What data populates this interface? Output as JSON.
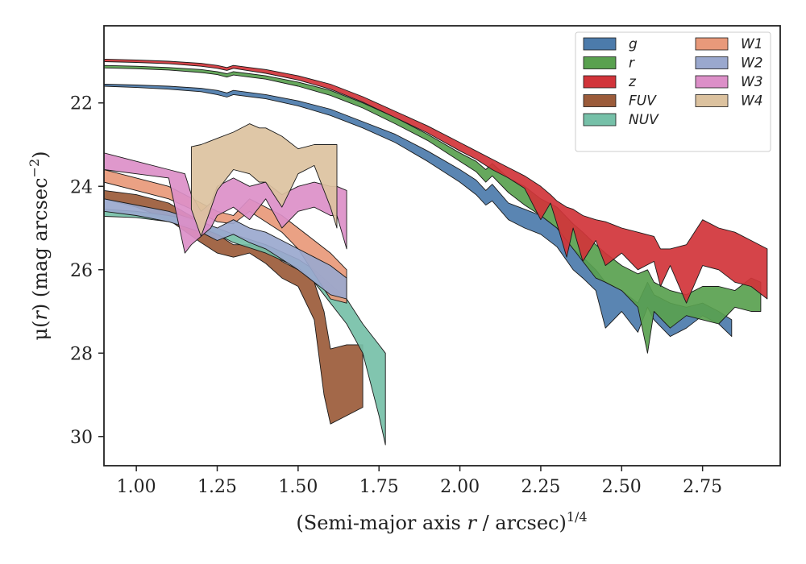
{
  "chart_data": {
    "type": "area",
    "xlabel_parts": [
      "(Semi-major axis ",
      "r",
      " / arcsec)",
      "1/4"
    ],
    "ylabel_parts": [
      "μ(",
      "r",
      ") (mag arcsec",
      "−2",
      ")"
    ],
    "xlim": [
      0.9,
      2.99
    ],
    "ylim": [
      30.7,
      20.15
    ],
    "y_inverted": true,
    "xticks": [
      1.0,
      1.25,
      1.5,
      1.75,
      2.0,
      2.25,
      2.5,
      2.75
    ],
    "xtick_labels": [
      "1.00",
      "1.25",
      "1.50",
      "1.75",
      "2.00",
      "2.25",
      "2.50",
      "2.75"
    ],
    "yticks": [
      22,
      24,
      26,
      28,
      30
    ],
    "ytick_labels": [
      "22",
      "24",
      "26",
      "28",
      "30"
    ],
    "grid": false,
    "legend": {
      "placement": "top-right",
      "columns": 2
    },
    "series": [
      {
        "name": "g",
        "color": "#4c7bab",
        "x": [
          0.9,
          1.0,
          1.1,
          1.2,
          1.25,
          1.28,
          1.3,
          1.35,
          1.4,
          1.5,
          1.6,
          1.7,
          1.8,
          1.9,
          2.0,
          2.05,
          2.08,
          2.1,
          2.15,
          2.2,
          2.25,
          2.3,
          2.35,
          2.38,
          2.42,
          2.45,
          2.5,
          2.55,
          2.58,
          2.6,
          2.65,
          2.7,
          2.75,
          2.8,
          2.84
        ],
        "lo": [
          21.55,
          21.57,
          21.6,
          21.65,
          21.7,
          21.76,
          21.7,
          21.75,
          21.8,
          21.95,
          22.15,
          22.45,
          22.75,
          23.15,
          23.6,
          23.85,
          24.1,
          23.95,
          24.4,
          24.55,
          24.7,
          25.0,
          25.5,
          25.7,
          26.0,
          26.3,
          26.5,
          26.8,
          26.3,
          26.6,
          26.8,
          26.9,
          26.8,
          27.0,
          27.2
        ],
        "hi": [
          21.6,
          21.63,
          21.67,
          21.73,
          21.8,
          21.86,
          21.8,
          21.85,
          21.9,
          22.07,
          22.3,
          22.6,
          22.95,
          23.4,
          23.9,
          24.2,
          24.45,
          24.35,
          24.8,
          25.0,
          25.15,
          25.45,
          26.0,
          26.2,
          26.5,
          27.4,
          27.0,
          27.5,
          26.9,
          27.2,
          27.6,
          27.4,
          27.1,
          27.3,
          27.6
        ]
      },
      {
        "name": "r",
        "color": "#59a14f",
        "x": [
          0.9,
          1.0,
          1.1,
          1.2,
          1.25,
          1.28,
          1.3,
          1.35,
          1.4,
          1.5,
          1.6,
          1.7,
          1.8,
          1.9,
          2.0,
          2.05,
          2.08,
          2.1,
          2.15,
          2.2,
          2.25,
          2.3,
          2.35,
          2.38,
          2.42,
          2.45,
          2.5,
          2.55,
          2.58,
          2.6,
          2.65,
          2.7,
          2.75,
          2.8,
          2.85,
          2.9,
          2.93
        ],
        "lo": [
          21.1,
          21.12,
          21.15,
          21.2,
          21.25,
          21.3,
          21.25,
          21.3,
          21.35,
          21.5,
          21.7,
          22.0,
          22.35,
          22.75,
          23.2,
          23.4,
          23.6,
          23.45,
          23.8,
          24.0,
          24.3,
          24.5,
          24.9,
          25.1,
          25.4,
          25.6,
          25.9,
          26.1,
          26.0,
          26.3,
          26.5,
          26.6,
          26.4,
          26.4,
          26.5,
          26.2,
          26.3
        ],
        "hi": [
          21.16,
          21.18,
          21.21,
          21.27,
          21.32,
          21.38,
          21.33,
          21.38,
          21.43,
          21.6,
          21.82,
          22.12,
          22.5,
          22.9,
          23.4,
          23.65,
          23.9,
          23.75,
          24.15,
          24.45,
          24.7,
          25.0,
          25.5,
          25.8,
          26.2,
          26.3,
          26.5,
          26.9,
          28.0,
          27.0,
          27.4,
          27.1,
          27.2,
          27.3,
          26.9,
          27.0,
          27.0
        ]
      },
      {
        "name": "z",
        "color": "#d1343a",
        "x": [
          0.9,
          1.0,
          1.1,
          1.2,
          1.25,
          1.28,
          1.3,
          1.35,
          1.4,
          1.5,
          1.6,
          1.7,
          1.8,
          1.9,
          2.0,
          2.05,
          2.1,
          2.15,
          2.2,
          2.25,
          2.28,
          2.3,
          2.33,
          2.35,
          2.38,
          2.42,
          2.45,
          2.5,
          2.55,
          2.6,
          2.62,
          2.65,
          2.7,
          2.75,
          2.8,
          2.85,
          2.9,
          2.95
        ],
        "lo": [
          20.95,
          20.97,
          21.0,
          21.05,
          21.1,
          21.15,
          21.1,
          21.15,
          21.2,
          21.35,
          21.55,
          21.85,
          22.2,
          22.55,
          22.95,
          23.15,
          23.35,
          23.55,
          23.75,
          24.0,
          24.2,
          24.35,
          24.5,
          24.55,
          24.7,
          24.8,
          24.85,
          25.0,
          25.1,
          25.2,
          25.5,
          25.5,
          25.4,
          24.8,
          25.0,
          25.1,
          25.3,
          25.5
        ],
        "hi": [
          21.01,
          21.03,
          21.06,
          21.12,
          21.17,
          21.22,
          21.17,
          21.23,
          21.29,
          21.45,
          21.67,
          21.98,
          22.35,
          22.72,
          23.15,
          23.35,
          23.6,
          23.8,
          24.05,
          24.8,
          24.4,
          24.9,
          25.7,
          25.0,
          25.8,
          25.3,
          25.9,
          25.6,
          26.0,
          25.8,
          26.4,
          25.9,
          26.8,
          25.9,
          26.0,
          26.3,
          26.4,
          26.7
        ]
      },
      {
        "name": "FUV",
        "color": "#9b5b3a",
        "x": [
          0.9,
          1.0,
          1.1,
          1.2,
          1.25,
          1.3,
          1.35,
          1.4,
          1.45,
          1.5,
          1.55,
          1.58,
          1.6,
          1.65,
          1.7
        ],
        "lo": [
          24.1,
          24.2,
          24.4,
          24.85,
          25.15,
          25.4,
          25.4,
          25.5,
          25.8,
          26.0,
          26.3,
          27.0,
          27.9,
          27.8,
          27.8
        ],
        "hi": [
          24.3,
          24.5,
          24.8,
          25.35,
          25.6,
          25.7,
          25.6,
          25.85,
          26.2,
          26.4,
          27.2,
          29.0,
          29.7,
          29.5,
          29.3
        ]
      },
      {
        "name": "NUV",
        "color": "#76c0a8",
        "x": [
          0.9,
          1.0,
          1.1,
          1.2,
          1.25,
          1.3,
          1.4,
          1.5,
          1.55,
          1.6,
          1.65,
          1.7,
          1.75,
          1.77
        ],
        "lo": [
          24.55,
          24.6,
          24.7,
          24.85,
          25.0,
          25.15,
          25.4,
          25.75,
          26.0,
          26.35,
          26.7,
          27.3,
          27.8,
          28.0
        ],
        "hi": [
          24.72,
          24.75,
          24.85,
          25.0,
          25.15,
          25.35,
          25.6,
          25.95,
          26.3,
          26.8,
          27.3,
          28.0,
          29.5,
          30.2
        ]
      },
      {
        "name": "W1",
        "color": "#e8997a",
        "x": [
          0.9,
          1.0,
          1.1,
          1.2,
          1.25,
          1.3,
          1.35,
          1.4,
          1.45,
          1.5,
          1.55,
          1.6,
          1.65
        ],
        "lo": [
          23.6,
          23.8,
          24.0,
          24.4,
          24.6,
          24.7,
          24.3,
          24.5,
          24.7,
          25.0,
          25.3,
          25.6,
          26.0
        ],
        "hi": [
          23.9,
          24.1,
          24.3,
          24.65,
          24.85,
          24.9,
          24.6,
          24.85,
          25.1,
          25.5,
          26.1,
          26.7,
          26.8
        ]
      },
      {
        "name": "W2",
        "color": "#9aa8ce",
        "x": [
          0.9,
          1.0,
          1.1,
          1.2,
          1.25,
          1.3,
          1.35,
          1.4,
          1.45,
          1.5,
          1.55,
          1.6,
          1.65
        ],
        "lo": [
          24.3,
          24.45,
          24.6,
          24.85,
          25.0,
          24.8,
          25.0,
          25.1,
          25.3,
          25.5,
          25.7,
          25.9,
          26.2
        ],
        "hi": [
          24.6,
          24.7,
          24.85,
          25.1,
          25.3,
          25.15,
          25.35,
          25.5,
          25.75,
          26.0,
          26.3,
          26.6,
          26.7
        ]
      },
      {
        "name": "W3",
        "color": "#dc8fc8",
        "x": [
          0.9,
          1.0,
          1.1,
          1.15,
          1.17,
          1.2,
          1.23,
          1.25,
          1.3,
          1.35,
          1.4,
          1.45,
          1.5,
          1.55,
          1.6,
          1.62,
          1.65
        ],
        "lo": [
          23.2,
          23.4,
          23.6,
          23.7,
          24.2,
          24.6,
          24.4,
          24.0,
          23.8,
          24.0,
          23.9,
          24.2,
          24.0,
          23.9,
          24.0,
          24.0,
          24.1
        ],
        "hi": [
          23.6,
          23.7,
          23.8,
          25.6,
          25.4,
          25.2,
          25.0,
          24.7,
          24.5,
          24.8,
          24.3,
          25.0,
          24.6,
          24.5,
          24.7,
          24.7,
          25.5
        ]
      },
      {
        "name": "W4",
        "color": "#dcc29f",
        "x": [
          1.17,
          1.2,
          1.25,
          1.3,
          1.35,
          1.38,
          1.4,
          1.45,
          1.5,
          1.55,
          1.6,
          1.62
        ],
        "lo": [
          23.05,
          23.0,
          22.85,
          22.7,
          22.5,
          22.6,
          22.6,
          22.8,
          23.1,
          23.0,
          23.0,
          23.0
        ],
        "hi": [
          24.55,
          25.2,
          24.1,
          23.6,
          23.7,
          23.9,
          23.9,
          24.5,
          23.7,
          23.5,
          24.5,
          25.0
        ]
      }
    ]
  }
}
